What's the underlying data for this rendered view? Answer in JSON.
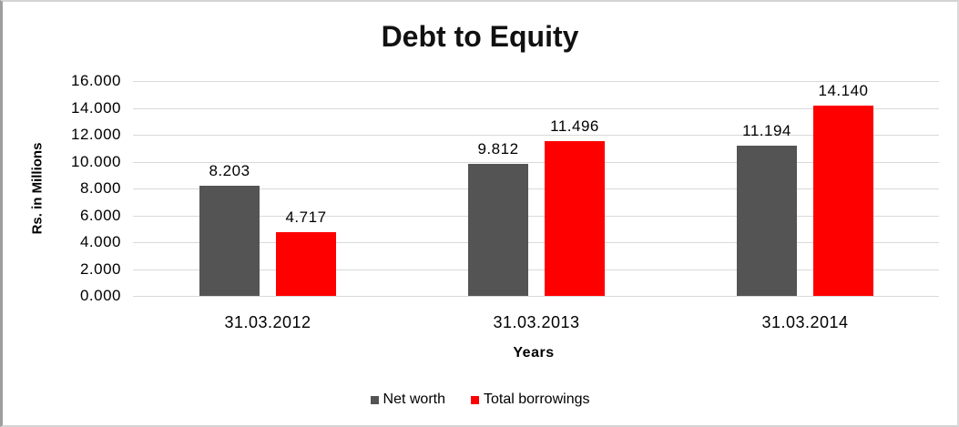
{
  "chart_data": {
    "type": "bar",
    "title": "Debt to Equity",
    "xlabel": "Years",
    "ylabel": "Rs. in Millions",
    "categories": [
      "31.03.2012",
      "31.03.2013",
      "31.03.2014"
    ],
    "series": [
      {
        "name": "Net worth",
        "color": "#545454",
        "values": [
          8.203,
          9.812,
          11.194
        ],
        "labels": [
          "8.203",
          "9.812",
          "11.194"
        ]
      },
      {
        "name": "Total borrowings",
        "color": "#ff0000",
        "values": [
          4.717,
          11.496,
          14.14
        ],
        "labels": [
          "4.717",
          "11.496",
          "14.140"
        ]
      }
    ],
    "ylim": [
      0,
      16
    ],
    "ytick_step": 2,
    "ytick_labels": [
      "0.000",
      "2.000",
      "4.000",
      "6.000",
      "8.000",
      "10.000",
      "12.000",
      "14.000",
      "16.000"
    ],
    "grid": true,
    "gridline_color": "#d9d9d9",
    "legend_position": "bottom",
    "background": "#ffffff"
  }
}
